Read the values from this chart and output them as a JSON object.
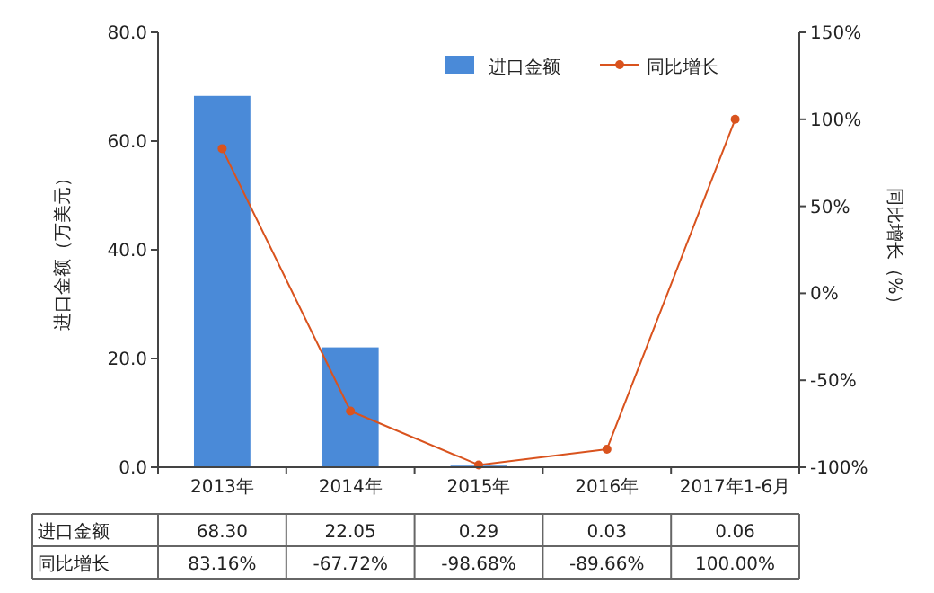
{
  "chart_data": {
    "type": "bar",
    "categories": [
      "2013年",
      "2014年",
      "2015年",
      "2016年",
      "2017年1-6月"
    ],
    "ylabel": "进口金额（万美元）",
    "y2label": "同比增长（%）",
    "ylim": [
      0,
      80
    ],
    "yticks": [
      {
        "value": 0,
        "label": "0.0"
      },
      {
        "value": 20,
        "label": "20.0"
      },
      {
        "value": 40,
        "label": "40.0"
      },
      {
        "value": 60,
        "label": "60.0"
      },
      {
        "value": 80,
        "label": "80.0"
      }
    ],
    "y2lim": [
      -100,
      150
    ],
    "y2ticks": [
      {
        "value": -100,
        "label": "-100%"
      },
      {
        "value": -50,
        "label": "-50%"
      },
      {
        "value": 0,
        "label": "0%"
      },
      {
        "value": 50,
        "label": "50%"
      },
      {
        "value": 100,
        "label": "100%"
      },
      {
        "value": 150,
        "label": "150%"
      }
    ],
    "legend": "top right",
    "grid": false,
    "series": [
      {
        "name": "进口金额",
        "color": "#4a8ad8",
        "values": [
          68.3,
          22.05,
          0.29,
          0.03,
          0.06
        ],
        "value_labels": [
          "68.30",
          "22.05",
          "0.29",
          "0.03",
          "0.06"
        ]
      },
      {
        "name": "同比增长",
        "type": "line",
        "axis": "y2",
        "color": "#d9531e",
        "marker": "circle",
        "values": [
          83.16,
          -67.72,
          -98.68,
          -89.66,
          100
        ],
        "value_labels": [
          "83.16%",
          "-67.72%",
          "-98.68%",
          "-89.66%",
          "100.00%"
        ]
      }
    ]
  }
}
